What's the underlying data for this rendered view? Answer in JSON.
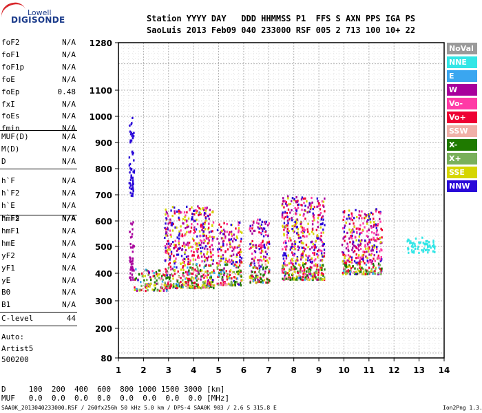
{
  "logo": {
    "top": "Lowell",
    "main": "DIGISONDE"
  },
  "header": {
    "line1": "Station YYYY DAY   DDD HHMMSS P1  FFS S AXN PPS IGA PS",
    "line2": "SaoLuis 2013 Feb09 040 233000 RSF 005 2 713 100 10+ 22"
  },
  "params_group1": [
    {
      "name": "foF2",
      "value": "N/A"
    },
    {
      "name": "foF1",
      "value": "N/A"
    },
    {
      "name": "foF1p",
      "value": "N/A"
    },
    {
      "name": "foE",
      "value": "N/A"
    },
    {
      "name": "foEp",
      "value": "0.48"
    },
    {
      "name": "fxI",
      "value": "N/A"
    },
    {
      "name": "foEs",
      "value": "N/A"
    },
    {
      "name": "fmin",
      "value": "N/A"
    }
  ],
  "params_group2": [
    {
      "name": "MUF(D)",
      "value": "N/A"
    },
    {
      "name": "M(D)",
      "value": "N/A"
    },
    {
      "name": "D",
      "value": "N/A"
    }
  ],
  "params_group3": [
    {
      "name": "h`F",
      "value": "N/A"
    },
    {
      "name": "h`F2",
      "value": "N/A"
    },
    {
      "name": "h`E",
      "value": "N/A"
    },
    {
      "name": "h`Es",
      "value": "N/A"
    }
  ],
  "params_group4": [
    {
      "name": "hmF2",
      "value": "N/A"
    },
    {
      "name": "hmF1",
      "value": "N/A"
    },
    {
      "name": "hmE",
      "value": "N/A"
    },
    {
      "name": "yF2",
      "value": "N/A"
    },
    {
      "name": "yF1",
      "value": "N/A"
    },
    {
      "name": "yE",
      "value": "N/A"
    },
    {
      "name": "B0",
      "value": "N/A"
    },
    {
      "name": "B1",
      "value": "N/A"
    }
  ],
  "clevel": {
    "name": "C-level",
    "value": "44"
  },
  "auto": {
    "line1": "Auto:",
    "line2": "Artist5",
    "line3": "500200"
  },
  "legend": [
    {
      "label": "NoVal",
      "color": "#9a9a9a"
    },
    {
      "label": "NNE",
      "color": "#33e6e6"
    },
    {
      "label": "E",
      "color": "#3aa6f0"
    },
    {
      "label": "W",
      "color": "#a8009c"
    },
    {
      "label": "Vo-",
      "color": "#ff3aa6"
    },
    {
      "label": "Vo+",
      "color": "#ee0033"
    },
    {
      "label": "SSW",
      "color": "#f0b0a8"
    },
    {
      "label": "X-",
      "color": "#1f7a00"
    },
    {
      "label": "X+",
      "color": "#79b05a"
    },
    {
      "label": "SSE",
      "color": "#d6d600"
    },
    {
      "label": "NNW",
      "color": "#2a08d8"
    }
  ],
  "dtable": {
    "row1": "D     100  200  400  600  800 1000 1500 3000 [km]",
    "row2": "MUF   0.0  0.0  0.0  0.0  0.0  0.0  0.0  0.0 [MHz]"
  },
  "footer": {
    "left": "SAA0K_2013040233000.RSF / 260fx256h 50 kHz 5.0 km / DPS-4 SAA0K 903 / 2.6 S 315.8 E",
    "right": "Ion2Png 1.3.17"
  },
  "chart_data": {
    "type": "scatter",
    "title": "",
    "xlabel": "",
    "ylabel": "",
    "xlim": [
      1,
      14
    ],
    "ylim": [
      80,
      1280
    ],
    "x_ticks": [
      1,
      2,
      3,
      4,
      5,
      6,
      7,
      8,
      9,
      10,
      11,
      12,
      13,
      14
    ],
    "y_ticks": [
      80,
      200,
      300,
      400,
      500,
      600,
      700,
      800,
      900,
      1000,
      1100,
      1280
    ],
    "grid": true,
    "clusters": [
      {
        "x": [
          1.4,
          1.6
        ],
        "y": [
          700,
          1000
        ],
        "series": "NNW"
      },
      {
        "x": [
          1.4,
          1.6
        ],
        "y": [
          380,
          600
        ],
        "series": "W"
      },
      {
        "x": [
          1.6,
          3.0
        ],
        "y": [
          340,
          420
        ],
        "series": "mixed"
      },
      {
        "x": [
          2.8,
          4.8
        ],
        "y": [
          350,
          660
        ],
        "series": "mixed"
      },
      {
        "x": [
          4.9,
          5.9
        ],
        "y": [
          360,
          600
        ],
        "series": "mixed"
      },
      {
        "x": [
          6.2,
          7.0
        ],
        "y": [
          370,
          620
        ],
        "series": "mixed"
      },
      {
        "x": [
          7.5,
          9.2
        ],
        "y": [
          380,
          700
        ],
        "series": "mixed"
      },
      {
        "x": [
          9.9,
          11.5
        ],
        "y": [
          400,
          650
        ],
        "series": "mixed"
      },
      {
        "x": [
          12.5,
          13.6
        ],
        "y": [
          480,
          540
        ],
        "series": "NNE"
      }
    ]
  }
}
